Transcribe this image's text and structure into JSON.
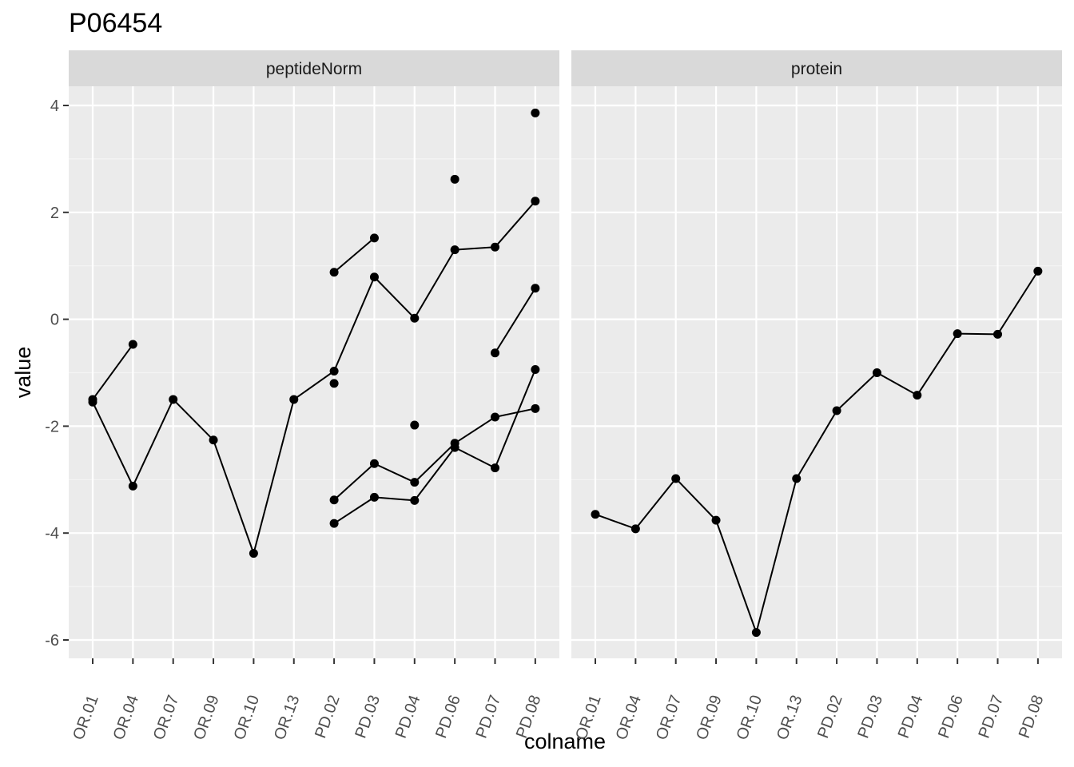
{
  "chart_data": {
    "type": "line",
    "title": "P06454",
    "xlabel": "colname",
    "ylabel": "value",
    "categories": [
      "OR.01",
      "OR.04",
      "OR.07",
      "OR.09",
      "OR.10",
      "OR.13",
      "PD.02",
      "PD.03",
      "PD.04",
      "PD.06",
      "PD.07",
      "PD.08"
    ],
    "y_ticks": [
      4,
      2,
      0,
      -2,
      -4,
      -6
    ],
    "ylim": [
      -6.3,
      4.4
    ],
    "grid": true,
    "colors": {
      "panel_bg": "#ebebeb",
      "strip_bg": "#d9d9d9",
      "grid_major": "#ffffff",
      "grid_minor": "#f4f4f4",
      "line": "#000000",
      "point": "#000000"
    },
    "facets": [
      {
        "label": "peptideNorm",
        "series": [
          {
            "values": [
              -1.5,
              -0.47,
              null,
              null,
              null,
              null,
              null,
              null,
              null,
              null,
              null,
              null
            ]
          },
          {
            "values": [
              -1.55,
              -3.12,
              -1.5,
              -2.26,
              -4.38,
              -1.5,
              -0.97,
              0.79,
              0.02,
              1.3,
              1.35,
              2.21
            ]
          },
          {
            "values": [
              null,
              null,
              null,
              null,
              null,
              null,
              0.88,
              1.52,
              null,
              null,
              null,
              null
            ]
          },
          {
            "values": [
              null,
              null,
              null,
              null,
              null,
              null,
              null,
              null,
              null,
              2.62,
              null,
              3.86
            ]
          },
          {
            "values": [
              null,
              null,
              null,
              null,
              null,
              null,
              -1.2,
              null,
              -1.98,
              null,
              -0.63,
              0.58
            ]
          },
          {
            "values": [
              null,
              null,
              null,
              null,
              null,
              null,
              -3.38,
              -2.7,
              -3.05,
              -2.32,
              -1.83,
              -1.67
            ]
          },
          {
            "values": [
              null,
              null,
              null,
              null,
              null,
              null,
              -3.82,
              -3.33,
              -3.39,
              -2.4,
              -2.78,
              -0.94
            ]
          }
        ]
      },
      {
        "label": "protein",
        "series": [
          {
            "values": [
              -3.65,
              -3.92,
              -2.98,
              -3.76,
              -5.86,
              -2.98,
              -1.71,
              -1.0,
              -1.42,
              -0.27,
              -0.28,
              0.9
            ]
          }
        ]
      }
    ]
  }
}
